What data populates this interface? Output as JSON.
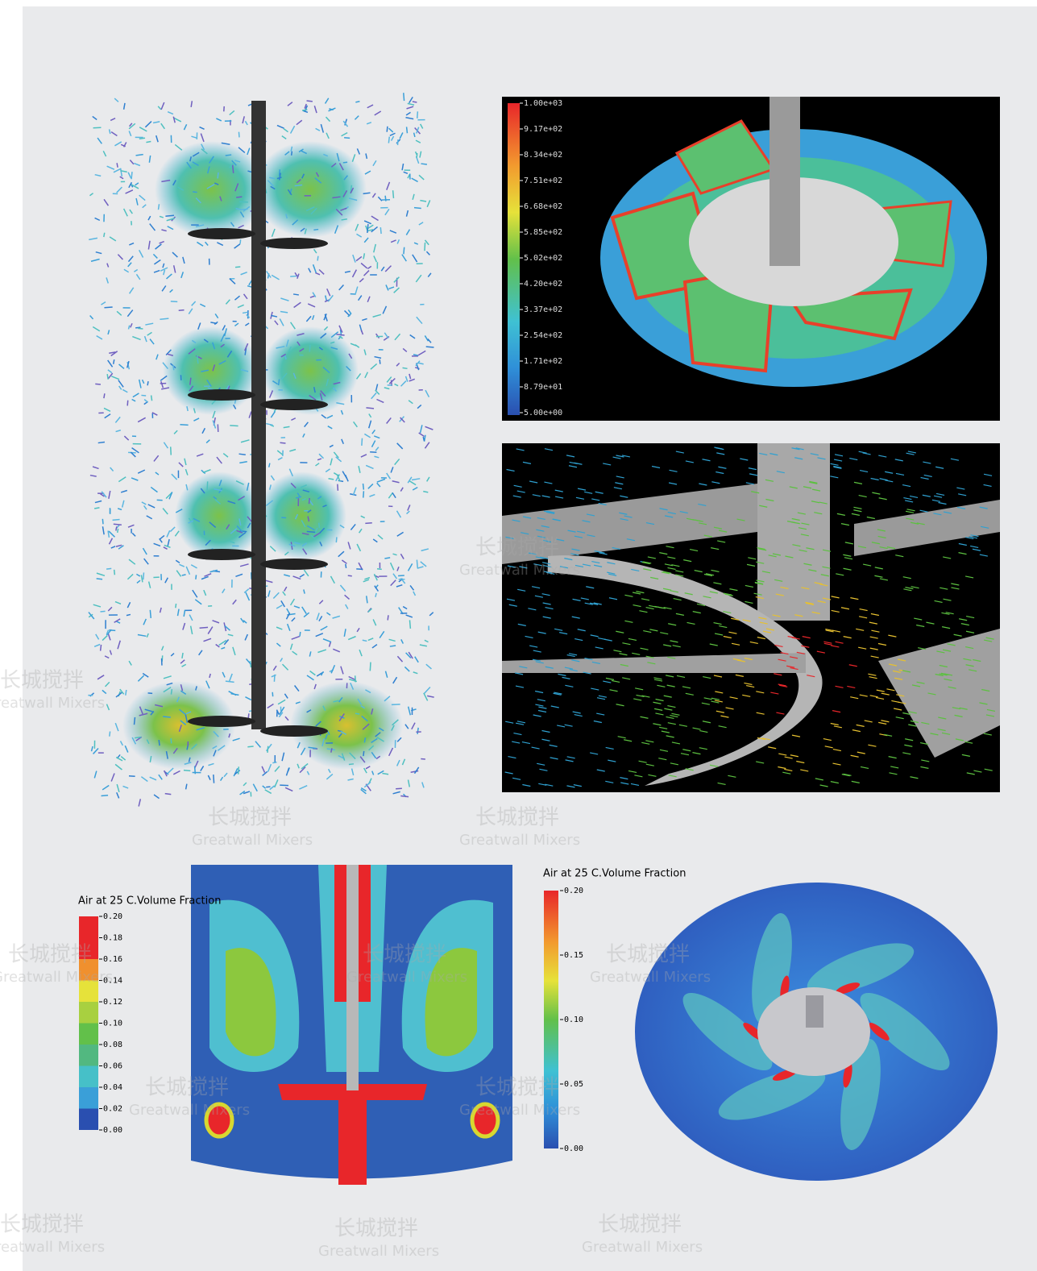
{
  "panels": [
    {
      "colorbar": {
        "labels": [
          "1.00e+03",
          "9.17e+02",
          "8.34e+02",
          "7.51e+02",
          "6.68e+02",
          "5.85e+02",
          "5.02e+02",
          "4.20e+02",
          "3.37e+02",
          "2.54e+02",
          "1.71e+02",
          "8.79e+01",
          "5.00e+00"
        ]
      }
    },
    {
      "colorbar": {
        "title": "Air at 25 C.Volume Fraction",
        "labels": [
          "0.20",
          "0.18",
          "0.16",
          "0.14",
          "0.12",
          "0.10",
          "0.08",
          "0.06",
          "0.04",
          "0.02",
          "0.00"
        ]
      }
    },
    {
      "colorbar": {
        "title": "Air at 25 C.Volume Fraction",
        "labels": [
          "0.20",
          "0.15",
          "0.10",
          "0.05",
          "0.00"
        ]
      }
    }
  ],
  "watermark": {
    "cn": "长城搅拌",
    "en": "Greatwall Mixers"
  }
}
